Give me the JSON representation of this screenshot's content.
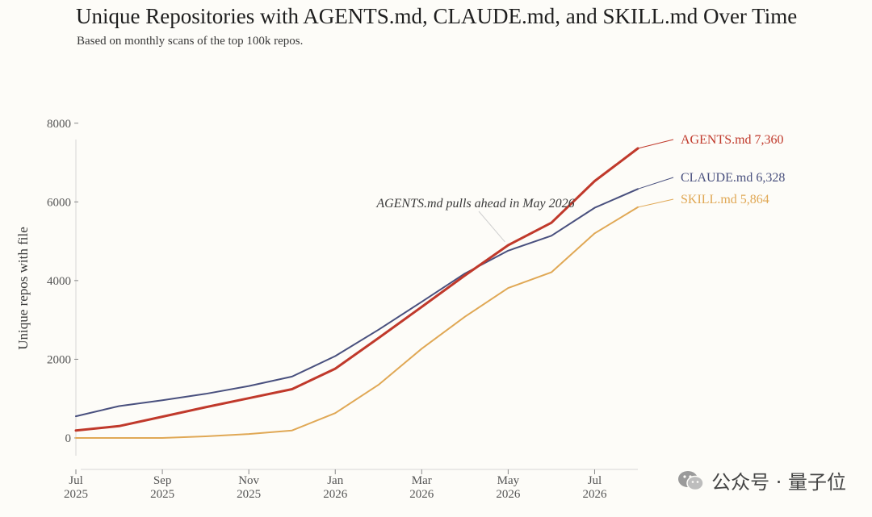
{
  "chart_data": {
    "type": "line",
    "title": "Unique Repositories with AGENTS.md, CLAUDE.md, and SKILL.md Over Time",
    "subtitle": "Based on monthly scans of the top 100k repos.",
    "xlabel": "",
    "ylabel": "Unique repos with file",
    "x": [
      "2025-07",
      "2025-08",
      "2025-09",
      "2025-10",
      "2025-11",
      "2025-12",
      "2026-01",
      "2026-02",
      "2026-03",
      "2026-04",
      "2026-05",
      "2026-06",
      "2026-07",
      "2026-08"
    ],
    "x_ticks": [
      {
        "date": "2025-07",
        "month": "Jul",
        "year": "2025"
      },
      {
        "date": "2025-09",
        "month": "Sep",
        "year": "2025"
      },
      {
        "date": "2025-11",
        "month": "Nov",
        "year": "2025"
      },
      {
        "date": "2026-01",
        "month": "Jan",
        "year": "2026"
      },
      {
        "date": "2026-03",
        "month": "Mar",
        "year": "2026"
      },
      {
        "date": "2026-05",
        "month": "May",
        "year": "2026"
      },
      {
        "date": "2026-07",
        "month": "Jul",
        "year": "2026"
      }
    ],
    "y_ticks": [
      "0",
      "2000",
      "4000",
      "6000",
      "8000"
    ],
    "ylim": [
      -800,
      8200
    ],
    "grid": false,
    "series": [
      {
        "name": "AGENTS.md",
        "color": "#c0392b",
        "end_label": "AGENTS.md 7,360",
        "values": [
          190,
          300,
          540,
          780,
          1010,
          1240,
          1760,
          2540,
          3330,
          4130,
          4900,
          5470,
          6530,
          7360
        ]
      },
      {
        "name": "CLAUDE.md",
        "color": "#49507e",
        "end_label": "CLAUDE.md 6,328",
        "values": [
          550,
          810,
          960,
          1120,
          1320,
          1560,
          2080,
          2750,
          3460,
          4180,
          4760,
          5140,
          5850,
          6328
        ]
      },
      {
        "name": "SKILL.md",
        "color": "#e0a855",
        "end_label": "SKILL.md 5,864",
        "values": [
          0,
          0,
          0,
          40,
          100,
          190,
          630,
          1350,
          2270,
          3080,
          3810,
          4210,
          5200,
          5864
        ]
      }
    ],
    "annotation": {
      "text": "AGENTS.md pulls ahead in May 2026",
      "x": "2026-05",
      "y": 4900
    }
  },
  "watermark": {
    "text": "公众号 · 量子位",
    "icon": "wechat-icon"
  }
}
